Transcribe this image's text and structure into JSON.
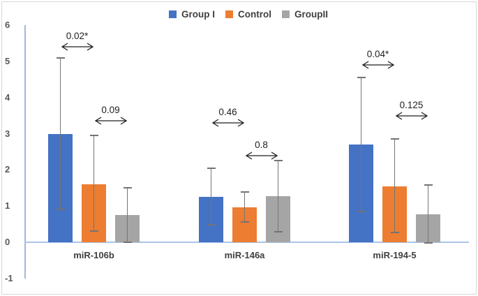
{
  "figure": {
    "background": "#ffffff",
    "border_color": "#d8d8d8"
  },
  "legend": {
    "position": "top-center",
    "items": [
      "Group I",
      "Control",
      "GroupII"
    ]
  },
  "chart_data": {
    "type": "bar",
    "title": "",
    "xlabel": "",
    "ylabel": "",
    "categories": [
      "miR-106b",
      "miR-146a",
      "miR-194-5"
    ],
    "series": [
      {
        "name": "Group I",
        "color": "#4472c4",
        "values": [
          3.0,
          1.25,
          2.7
        ],
        "error_low": [
          0.9,
          0.48,
          0.85
        ],
        "error_high": [
          5.1,
          2.05,
          4.56
        ]
      },
      {
        "name": "Control",
        "color": "#ed7d31",
        "values": [
          1.6,
          0.97,
          1.54
        ],
        "error_low": [
          0.31,
          0.56,
          0.27
        ],
        "error_high": [
          2.95,
          1.39,
          2.86
        ]
      },
      {
        "name": "GroupII",
        "color": "#a5a5a5",
        "values": [
          0.75,
          1.27,
          0.77
        ],
        "error_low": [
          0.0,
          0.29,
          -0.02
        ],
        "error_high": [
          1.5,
          2.26,
          1.58
        ]
      }
    ],
    "annotations": [
      {
        "label": "0.02*",
        "category": "miR-106b",
        "from": "Group I",
        "to": "Control",
        "y": 5.4
      },
      {
        "label": "0.09",
        "category": "miR-106b",
        "from": "Control",
        "to": "GroupII",
        "y": 3.35
      },
      {
        "label": "0.46",
        "category": "miR-146a",
        "from": "Group I",
        "to": "Control",
        "y": 3.3
      },
      {
        "label": "0.8",
        "category": "miR-146a",
        "from": "Control",
        "to": "GroupII",
        "y": 2.4
      },
      {
        "label": "0.04*",
        "category": "miR-194-5",
        "from": "Group I",
        "to": "Control",
        "y": 4.9
      },
      {
        "label": "0.125",
        "category": "miR-194-5",
        "from": "Control",
        "to": "GroupII",
        "y": 3.5
      }
    ],
    "y_ticks": [
      6,
      5,
      4,
      3,
      2,
      1,
      0,
      -1
    ],
    "ylim": [
      -1,
      6
    ],
    "grid": false,
    "legend_position": "top-center",
    "axis_color": "#9db8e0",
    "error_bar_color": "#767676",
    "annotation_color": "#1f1f1f"
  }
}
